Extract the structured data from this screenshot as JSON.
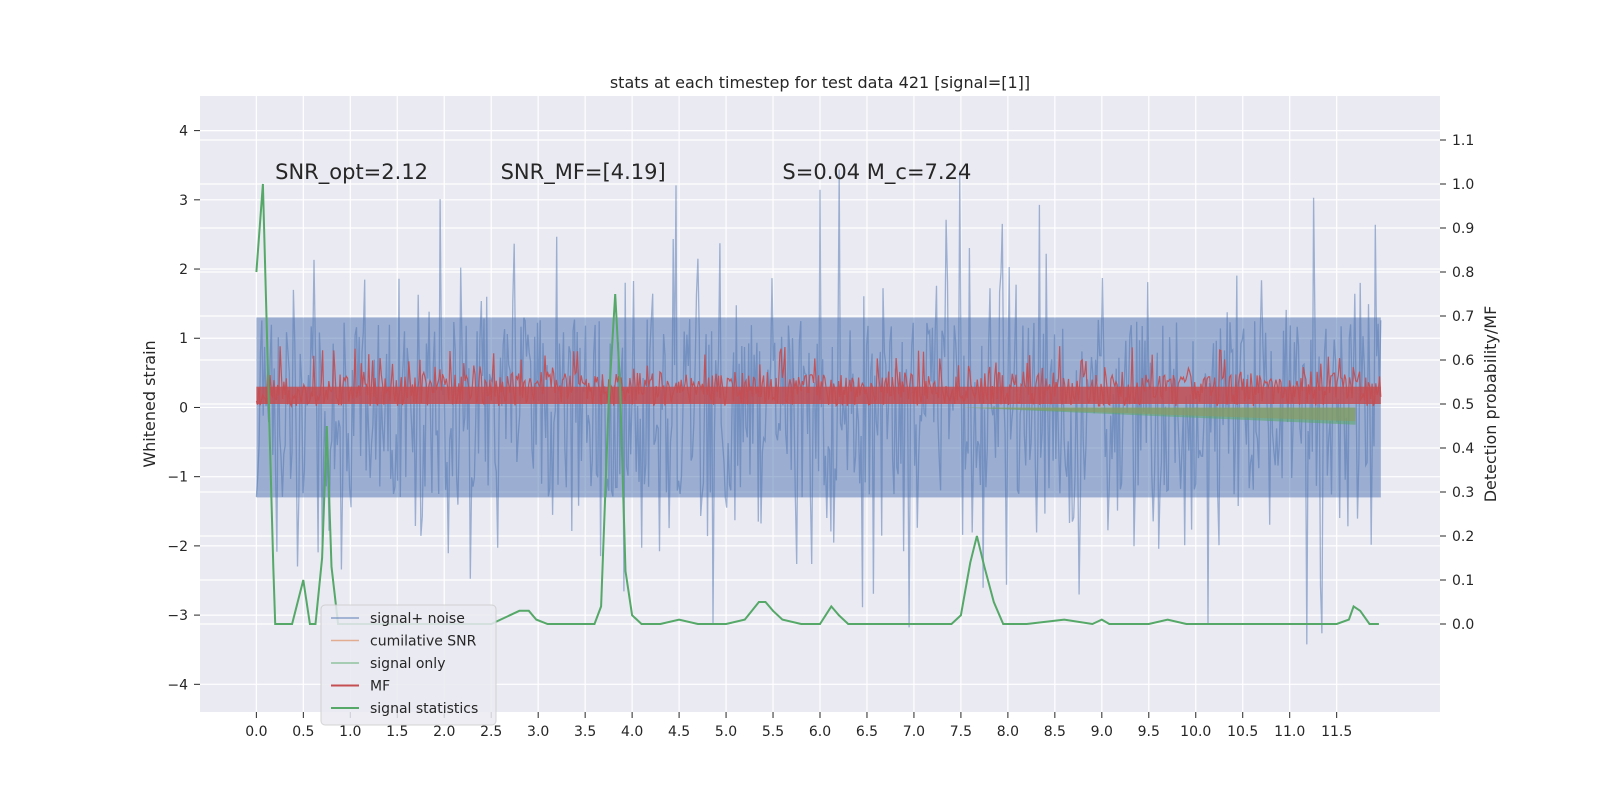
{
  "chart_data": {
    "type": "line",
    "title": "stats at each timestep for test data 421 [signal=[1]]",
    "xlabel": "",
    "ylabel": "Whitened strain",
    "ylabel_right": "Detection probability/MF",
    "xlim": [
      -0.6,
      12.6
    ],
    "ylim": [
      -4.4,
      4.5
    ],
    "ylim_right": [
      -0.2,
      1.2
    ],
    "x_ticks": [
      0.0,
      0.5,
      1.0,
      1.5,
      2.0,
      2.5,
      3.0,
      3.5,
      4.0,
      4.5,
      5.0,
      5.5,
      6.0,
      6.5,
      7.0,
      7.5,
      8.0,
      8.5,
      9.0,
      9.5,
      10.0,
      10.5,
      11.0,
      11.5
    ],
    "x_tick_labels": [
      "0.0",
      "0.5",
      "1.0",
      "1.5",
      "2.0",
      "2.5",
      "3.0",
      "3.5",
      "4.0",
      "4.5",
      "5.0",
      "5.5",
      "6.0",
      "6.5",
      "7.0",
      "7.5",
      "8.0",
      "8.5",
      "9.0",
      "9.5",
      "10.0",
      "10.5",
      "11.0",
      "11.5"
    ],
    "y_ticks": [
      -4,
      -3,
      -2,
      -1,
      0,
      1,
      2,
      3,
      4
    ],
    "y_tick_labels": [
      "−4",
      "−3",
      "−2",
      "−1",
      "0",
      "1",
      "2",
      "3",
      "4"
    ],
    "y_right_ticks": [
      0.0,
      0.1,
      0.2,
      0.3,
      0.4,
      0.5,
      0.6,
      0.7,
      0.8,
      0.9,
      1.0,
      1.1
    ],
    "y_right_tick_labels": [
      "0.0",
      "0.1",
      "0.2",
      "0.3",
      "0.4",
      "0.5",
      "0.6",
      "0.7",
      "0.8",
      "0.9",
      "1.0",
      "1.1"
    ],
    "annotations": [
      {
        "text": "SNR_opt=2.12",
        "x": 0.2,
        "y": 3.3
      },
      {
        "text": "SNR_MF=[4.19]",
        "x": 2.6,
        "y": 3.3
      },
      {
        "text": "S=0.04   M_c=7.24",
        "x": 5.6,
        "y": 3.3
      }
    ],
    "series": [
      {
        "name": "signal+ noise",
        "axis": "left",
        "color": "#4c72b0",
        "description": "noise band, core roughly ±1.3 with spikes to about ±3.5",
        "x_range": [
          0.0,
          11.97
        ]
      },
      {
        "name": "cumilative SNR",
        "axis": "left",
        "color": "#dd8452",
        "x_range": [
          7.5,
          11.7
        ],
        "y_end": -0.2
      },
      {
        "name": "signal only",
        "axis": "left",
        "color": "#55a868",
        "x_range": [
          7.5,
          11.7
        ],
        "y_end": -0.25
      },
      {
        "name": "MF",
        "axis": "left",
        "color": "#c44e52",
        "description": "positive band roughly 0 to 0.6 with peaks near 0.9",
        "x_range": [
          0.0,
          11.97
        ]
      },
      {
        "name": "signal statistics",
        "axis": "right",
        "color": "#55a868",
        "x": [
          0.0,
          0.07,
          0.13,
          0.18,
          0.2,
          0.25,
          0.3,
          0.38,
          0.5,
          0.57,
          0.63,
          0.7,
          0.75,
          0.8,
          0.87,
          0.95,
          1.1,
          1.5,
          2.0,
          2.5,
          2.8,
          2.9,
          2.98,
          3.1,
          3.2,
          3.4,
          3.6,
          3.67,
          3.75,
          3.82,
          3.87,
          3.93,
          4.0,
          4.1,
          4.3,
          4.5,
          4.7,
          5.0,
          5.2,
          5.35,
          5.42,
          5.5,
          5.6,
          5.8,
          6.0,
          6.12,
          6.2,
          6.3,
          6.4,
          6.6,
          7.0,
          7.4,
          7.5,
          7.6,
          7.67,
          7.75,
          7.85,
          7.95,
          8.2,
          8.6,
          8.9,
          9.0,
          9.08,
          9.2,
          9.5,
          9.7,
          9.9,
          10.2,
          10.5,
          11.0,
          11.5,
          11.63,
          11.68,
          11.75,
          11.85,
          11.95
        ],
        "y": [
          0.8,
          1.0,
          0.52,
          0.13,
          0.0,
          0.0,
          0.0,
          0.0,
          0.1,
          0.0,
          0.0,
          0.15,
          0.45,
          0.13,
          0.0,
          0.0,
          0.0,
          0.0,
          0.0,
          0.0,
          0.03,
          0.03,
          0.01,
          0.0,
          0.0,
          0.0,
          0.0,
          0.04,
          0.5,
          0.75,
          0.55,
          0.12,
          0.02,
          0.0,
          0.0,
          0.01,
          0.0,
          0.0,
          0.01,
          0.05,
          0.05,
          0.03,
          0.01,
          0.0,
          0.0,
          0.04,
          0.02,
          0.0,
          0.0,
          0.0,
          0.0,
          0.0,
          0.02,
          0.14,
          0.2,
          0.13,
          0.05,
          0.0,
          0.0,
          0.01,
          0.0,
          0.01,
          0.0,
          0.0,
          0.0,
          0.01,
          0.0,
          0.0,
          0.0,
          0.0,
          0.0,
          0.01,
          0.04,
          0.03,
          0.0,
          0.0
        ]
      }
    ],
    "legend": {
      "position": "lower-left",
      "entries": [
        "signal+ noise",
        "cumilative SNR",
        "signal only",
        "MF",
        "signal statistics"
      ]
    }
  }
}
